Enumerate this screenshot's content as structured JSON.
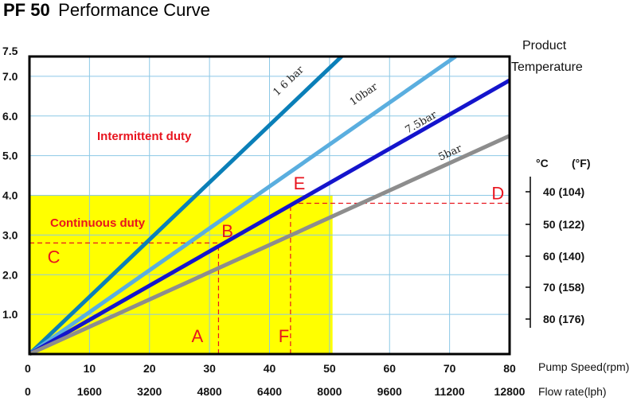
{
  "chart_data": {
    "type": "line",
    "title_bold": "PF 50",
    "title": "Performance Curve",
    "ytick_labels": [
      "1.0",
      "2.0",
      "3.0",
      "4.0",
      "5.0",
      "6.0",
      "7.0",
      "7.5"
    ],
    "ylim": [
      0,
      7.5
    ],
    "x1_ticks": [
      0,
      10,
      20,
      30,
      40,
      50,
      60,
      70,
      80
    ],
    "x1_label": "Pump Speed(rpm)",
    "x2_ticks": [
      0,
      1600,
      3200,
      4800,
      6400,
      8000,
      9600,
      11200,
      12800
    ],
    "x2_label": "Flow rate(lph)",
    "xlim": [
      0,
      80
    ],
    "grid": true,
    "series": [
      {
        "name": "1 6 bar",
        "color": "#0a7fb8",
        "points": [
          [
            0,
            0
          ],
          [
            52,
            7.5
          ]
        ]
      },
      {
        "name": "10bar",
        "color": "#5aaedf",
        "points": [
          [
            0,
            0
          ],
          [
            71,
            7.5
          ]
        ]
      },
      {
        "name": "7.5bar",
        "color": "#1414cc",
        "points": [
          [
            0,
            0
          ],
          [
            80,
            6.9
          ]
        ]
      },
      {
        "name": "5bar",
        "color": "#8d8d8d",
        "points": [
          [
            0,
            0
          ],
          [
            80,
            5.5
          ]
        ]
      }
    ],
    "regions": [
      {
        "label": "Continuous duty",
        "color": "#ffff00",
        "x": [
          0,
          50.5
        ],
        "y": [
          0,
          4.0
        ]
      },
      {
        "label": "Intermittent duty"
      }
    ],
    "points": [
      {
        "label": "A",
        "x": 27,
        "y": 0.3
      },
      {
        "label": "B",
        "x": 32,
        "y": 2.95
      },
      {
        "label": "C",
        "x": 3,
        "y": 2.3
      },
      {
        "label": "D",
        "x": 77,
        "y": 3.9
      },
      {
        "label": "E",
        "x": 44,
        "y": 4.15
      },
      {
        "label": "F",
        "x": 41.5,
        "y": 0.3
      }
    ],
    "dashed_lines": [
      {
        "from": [
          0,
          2.8
        ],
        "to": [
          31.5,
          2.8
        ]
      },
      {
        "from": [
          31.5,
          0
        ],
        "to": [
          31.5,
          2.8
        ]
      },
      {
        "from": [
          43.5,
          3.8
        ],
        "to": [
          80,
          3.8
        ]
      },
      {
        "from": [
          43.5,
          0
        ],
        "to": [
          43.5,
          3.8
        ]
      }
    ],
    "side_label_1": "Product",
    "side_label_2": "Temperature",
    "temp_header_c": "°C",
    "temp_header_f": "(°F)",
    "temps": [
      "40 (104)",
      "50 (122)",
      "60 (140)",
      "70 (158)",
      "80 (176)"
    ]
  }
}
